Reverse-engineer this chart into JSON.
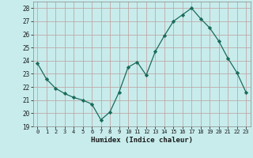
{
  "x": [
    0,
    1,
    2,
    3,
    4,
    5,
    6,
    7,
    8,
    9,
    10,
    11,
    12,
    13,
    14,
    15,
    16,
    17,
    18,
    19,
    20,
    21,
    22,
    23
  ],
  "y": [
    23.8,
    22.6,
    21.9,
    21.5,
    21.2,
    21.0,
    20.7,
    19.5,
    20.1,
    21.6,
    23.5,
    23.9,
    22.9,
    24.7,
    25.9,
    27.0,
    27.5,
    28.0,
    27.2,
    26.5,
    25.5,
    24.2,
    23.1,
    21.6
  ],
  "xlabel": "Humidex (Indice chaleur)",
  "ylim": [
    19,
    28.5
  ],
  "yticks": [
    19,
    20,
    21,
    22,
    23,
    24,
    25,
    26,
    27,
    28
  ],
  "xtick_labels": [
    "0",
    "1",
    "2",
    "3",
    "4",
    "5",
    "6",
    "7",
    "8",
    "9",
    "10",
    "11",
    "12",
    "13",
    "14",
    "15",
    "16",
    "17",
    "18",
    "19",
    "20",
    "21",
    "22",
    "23"
  ],
  "line_color": "#1a6b5a",
  "marker": "D",
  "marker_size": 2.2,
  "bg_color": "#c8ecec",
  "grid_major_color": "#c0a8a8",
  "grid_minor_color": "#d4bcbc"
}
